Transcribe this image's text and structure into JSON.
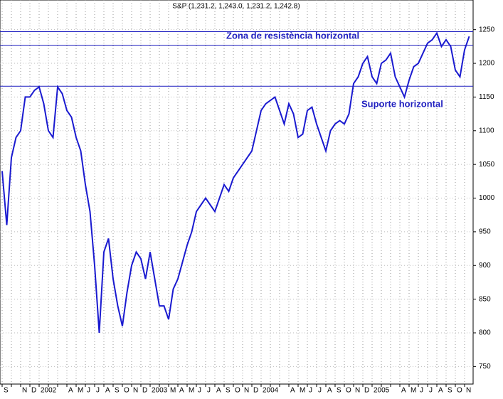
{
  "chart_data": {
    "type": "line",
    "title": "S&P (1,231.2, 1,243.0, 1,231.2, 1,242.8)",
    "annotations": [
      "Zona de resistència horizontal",
      "Suporte horizontal"
    ],
    "reference_lines": [
      1247,
      1227,
      1166
    ],
    "reference_color": "#2020c0",
    "grid": true,
    "ylim": [
      724,
      1294
    ],
    "yticks": [
      750,
      800,
      850,
      900,
      950,
      1000,
      1050,
      1100,
      1150,
      1200,
      1250
    ],
    "categories": [
      "S",
      null,
      null,
      null,
      "N",
      null,
      "D",
      null,
      "2002",
      null,
      null,
      null,
      null,
      null,
      "A",
      null,
      "M",
      null,
      "J",
      null,
      "J",
      null,
      "A",
      null,
      "S",
      null,
      "O",
      null,
      "N",
      null,
      "D",
      null,
      "2003",
      null,
      null,
      null,
      "M",
      null,
      "A",
      null,
      "M",
      null,
      "J",
      null,
      "J",
      null,
      "A",
      null,
      "S",
      null,
      "O",
      null,
      "N",
      null,
      "D",
      null,
      "2004",
      null,
      null,
      null,
      null,
      null,
      "A",
      null,
      "M",
      null,
      "J",
      null,
      "J",
      null,
      "A",
      null,
      "S",
      null,
      "O",
      null,
      "N",
      null,
      "D",
      null,
      "2005",
      null,
      null,
      null,
      null,
      null,
      "A",
      null,
      "M",
      null,
      "J",
      null,
      "J",
      null,
      "A",
      null,
      "S",
      null,
      "O",
      null,
      "N",
      null
    ],
    "series": [
      {
        "color": "#1a1ad0",
        "values": [
          1040,
          960,
          1060,
          1090,
          1100,
          1150,
          1150,
          1160,
          1165,
          1140,
          1100,
          1090,
          1165,
          1155,
          1130,
          1120,
          1090,
          1070,
          1020,
          980,
          900,
          800,
          920,
          940,
          880,
          840,
          810,
          860,
          900,
          920,
          910,
          880,
          920,
          880,
          840,
          840,
          820,
          865,
          880,
          905,
          930,
          950,
          980,
          990,
          1000,
          990,
          980,
          1000,
          1020,
          1010,
          1030,
          1040,
          1050,
          1060,
          1070,
          1100,
          1130,
          1140,
          1145,
          1150,
          1130,
          1110,
          1140,
          1125,
          1090,
          1095,
          1130,
          1135,
          1110,
          1090,
          1070,
          1100,
          1110,
          1115,
          1110,
          1125,
          1170,
          1180,
          1200,
          1210,
          1180,
          1170,
          1200,
          1205,
          1215,
          1180,
          1165,
          1150,
          1175,
          1195,
          1200,
          1215,
          1230,
          1235,
          1245,
          1225,
          1235,
          1225,
          1190,
          1180,
          1220,
          1240
        ]
      }
    ]
  }
}
